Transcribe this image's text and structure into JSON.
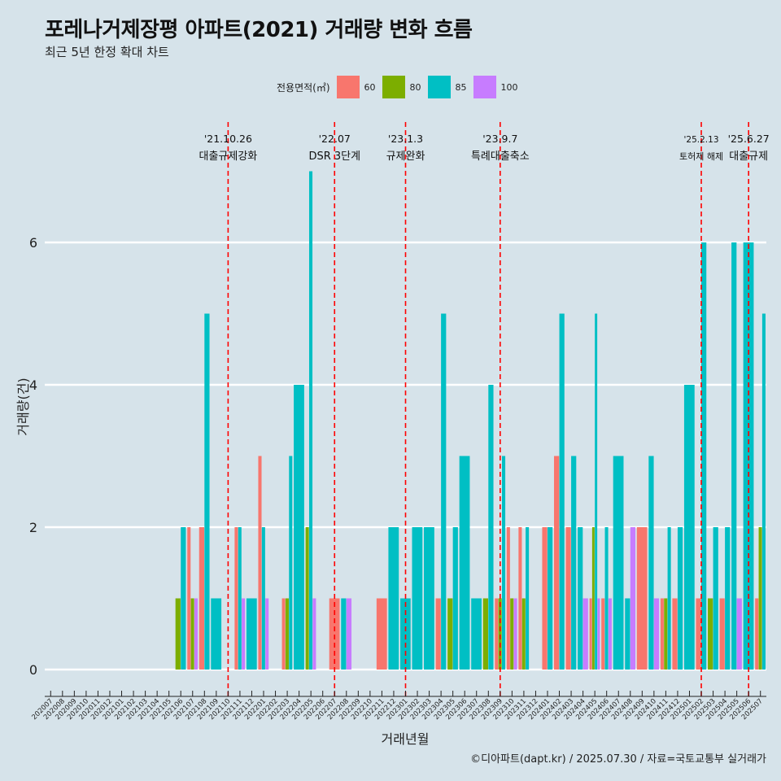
{
  "title": "포레나거제장평 아파트(2021) 거래량 변화 흐름",
  "subtitle": "최근 5년 한정 확대 차트",
  "caption": "©디아파트(dapt.kr) / 2025.07.30 / 자료=국토교통부 실거래가",
  "legend": {
    "title": "전용면적(㎡)",
    "items": [
      {
        "label": "60",
        "color": "#f8766d"
      },
      {
        "label": "80",
        "color": "#7cae00"
      },
      {
        "label": "85",
        "color": "#00bfc4"
      },
      {
        "label": "100",
        "color": "#c77cff"
      }
    ]
  },
  "chart_data": {
    "type": "bar",
    "title": "포레나거제장평 아파트(2021) 거래량 변화 흐름",
    "subtitle": "최근 5년 한정 확대 차트",
    "xlabel": "거래년월",
    "ylabel": "거래량(건)",
    "ylim": [
      0,
      7
    ],
    "yticks": [
      0,
      2,
      4,
      6
    ],
    "categories": [
      "202007",
      "202008",
      "202009",
      "202010",
      "202011",
      "202012",
      "202101",
      "202102",
      "202103",
      "202104",
      "202105",
      "202106",
      "202107",
      "202108",
      "202109",
      "202110",
      "202111",
      "202112",
      "202201",
      "202202",
      "202203",
      "202204",
      "202205",
      "202206",
      "202207",
      "202208",
      "202209",
      "202210",
      "202211",
      "202212",
      "202301",
      "202302",
      "202303",
      "202304",
      "202305",
      "202306",
      "202307",
      "202308",
      "202309",
      "202310",
      "202311",
      "202312",
      "202401",
      "202402",
      "202403",
      "202404",
      "202405",
      "202406",
      "202407",
      "202408",
      "202409",
      "202410",
      "202411",
      "202412",
      "202501",
      "202502",
      "202503",
      "202504",
      "202505",
      "202506",
      "202507"
    ],
    "series": [
      {
        "name": "60",
        "color": "#f8766d",
        "values": [
          0,
          0,
          0,
          0,
          0,
          0,
          0,
          0,
          0,
          0,
          0,
          0,
          2,
          2,
          0,
          0,
          2,
          0,
          3,
          0,
          1,
          0,
          0,
          0,
          1,
          0,
          0,
          0,
          1,
          0,
          0,
          0,
          0,
          1,
          0,
          0,
          0,
          0,
          1,
          2,
          2,
          0,
          2,
          3,
          2,
          0,
          1,
          1,
          0,
          0,
          2,
          0,
          1,
          1,
          0,
          1,
          0,
          1,
          0,
          0,
          1
        ]
      },
      {
        "name": "80",
        "color": "#7cae00",
        "values": [
          0,
          0,
          0,
          0,
          0,
          0,
          0,
          0,
          0,
          0,
          0,
          1,
          1,
          0,
          0,
          0,
          0,
          0,
          0,
          0,
          1,
          0,
          2,
          0,
          0,
          0,
          0,
          0,
          0,
          0,
          0,
          0,
          0,
          0,
          1,
          0,
          0,
          1,
          1,
          1,
          1,
          0,
          0,
          0,
          0,
          0,
          2,
          0,
          0,
          0,
          0,
          0,
          1,
          0,
          0,
          0,
          1,
          0,
          0,
          0,
          2
        ]
      },
      {
        "name": "85",
        "color": "#00bfc4",
        "values": [
          0,
          0,
          0,
          0,
          0,
          0,
          0,
          0,
          0,
          0,
          0,
          2,
          0,
          5,
          1,
          0,
          2,
          1,
          2,
          0,
          3,
          4,
          7,
          0,
          0,
          1,
          0,
          0,
          0,
          2,
          1,
          2,
          2,
          5,
          2,
          3,
          1,
          4,
          3,
          0,
          2,
          0,
          2,
          5,
          3,
          2,
          5,
          2,
          3,
          1,
          0,
          3,
          2,
          2,
          4,
          6,
          2,
          2,
          6,
          6,
          5
        ]
      },
      {
        "name": "100",
        "color": "#c77cff",
        "values": [
          0,
          0,
          0,
          0,
          0,
          0,
          0,
          0,
          0,
          0,
          0,
          0,
          1,
          0,
          0,
          0,
          1,
          0,
          1,
          0,
          0,
          0,
          1,
          0,
          0,
          1,
          0,
          0,
          0,
          0,
          0,
          0,
          0,
          0,
          0,
          0,
          0,
          0,
          0,
          1,
          0,
          0,
          0,
          0,
          0,
          1,
          1,
          1,
          0,
          2,
          0,
          1,
          0,
          0,
          0,
          0,
          0,
          0,
          1,
          0,
          0
        ]
      }
    ],
    "events": [
      {
        "at": "202110",
        "date": "'21.10.26",
        "label": "대출규제강화"
      },
      {
        "at": "202207",
        "date": "'22.07",
        "label": "DSR 3단계"
      },
      {
        "at": "202301",
        "date": "'23.1.3",
        "label": "규제완화"
      },
      {
        "at": "202309",
        "date": "'23.9.7",
        "label": "특례대출축소"
      },
      {
        "at": "202502",
        "date": "'25.2.13",
        "label": "토허제 해제"
      },
      {
        "at": "202506",
        "date": "'25.6.27",
        "label": "대출규제"
      }
    ],
    "grid": "horizontal-major",
    "legend_position": "top"
  }
}
